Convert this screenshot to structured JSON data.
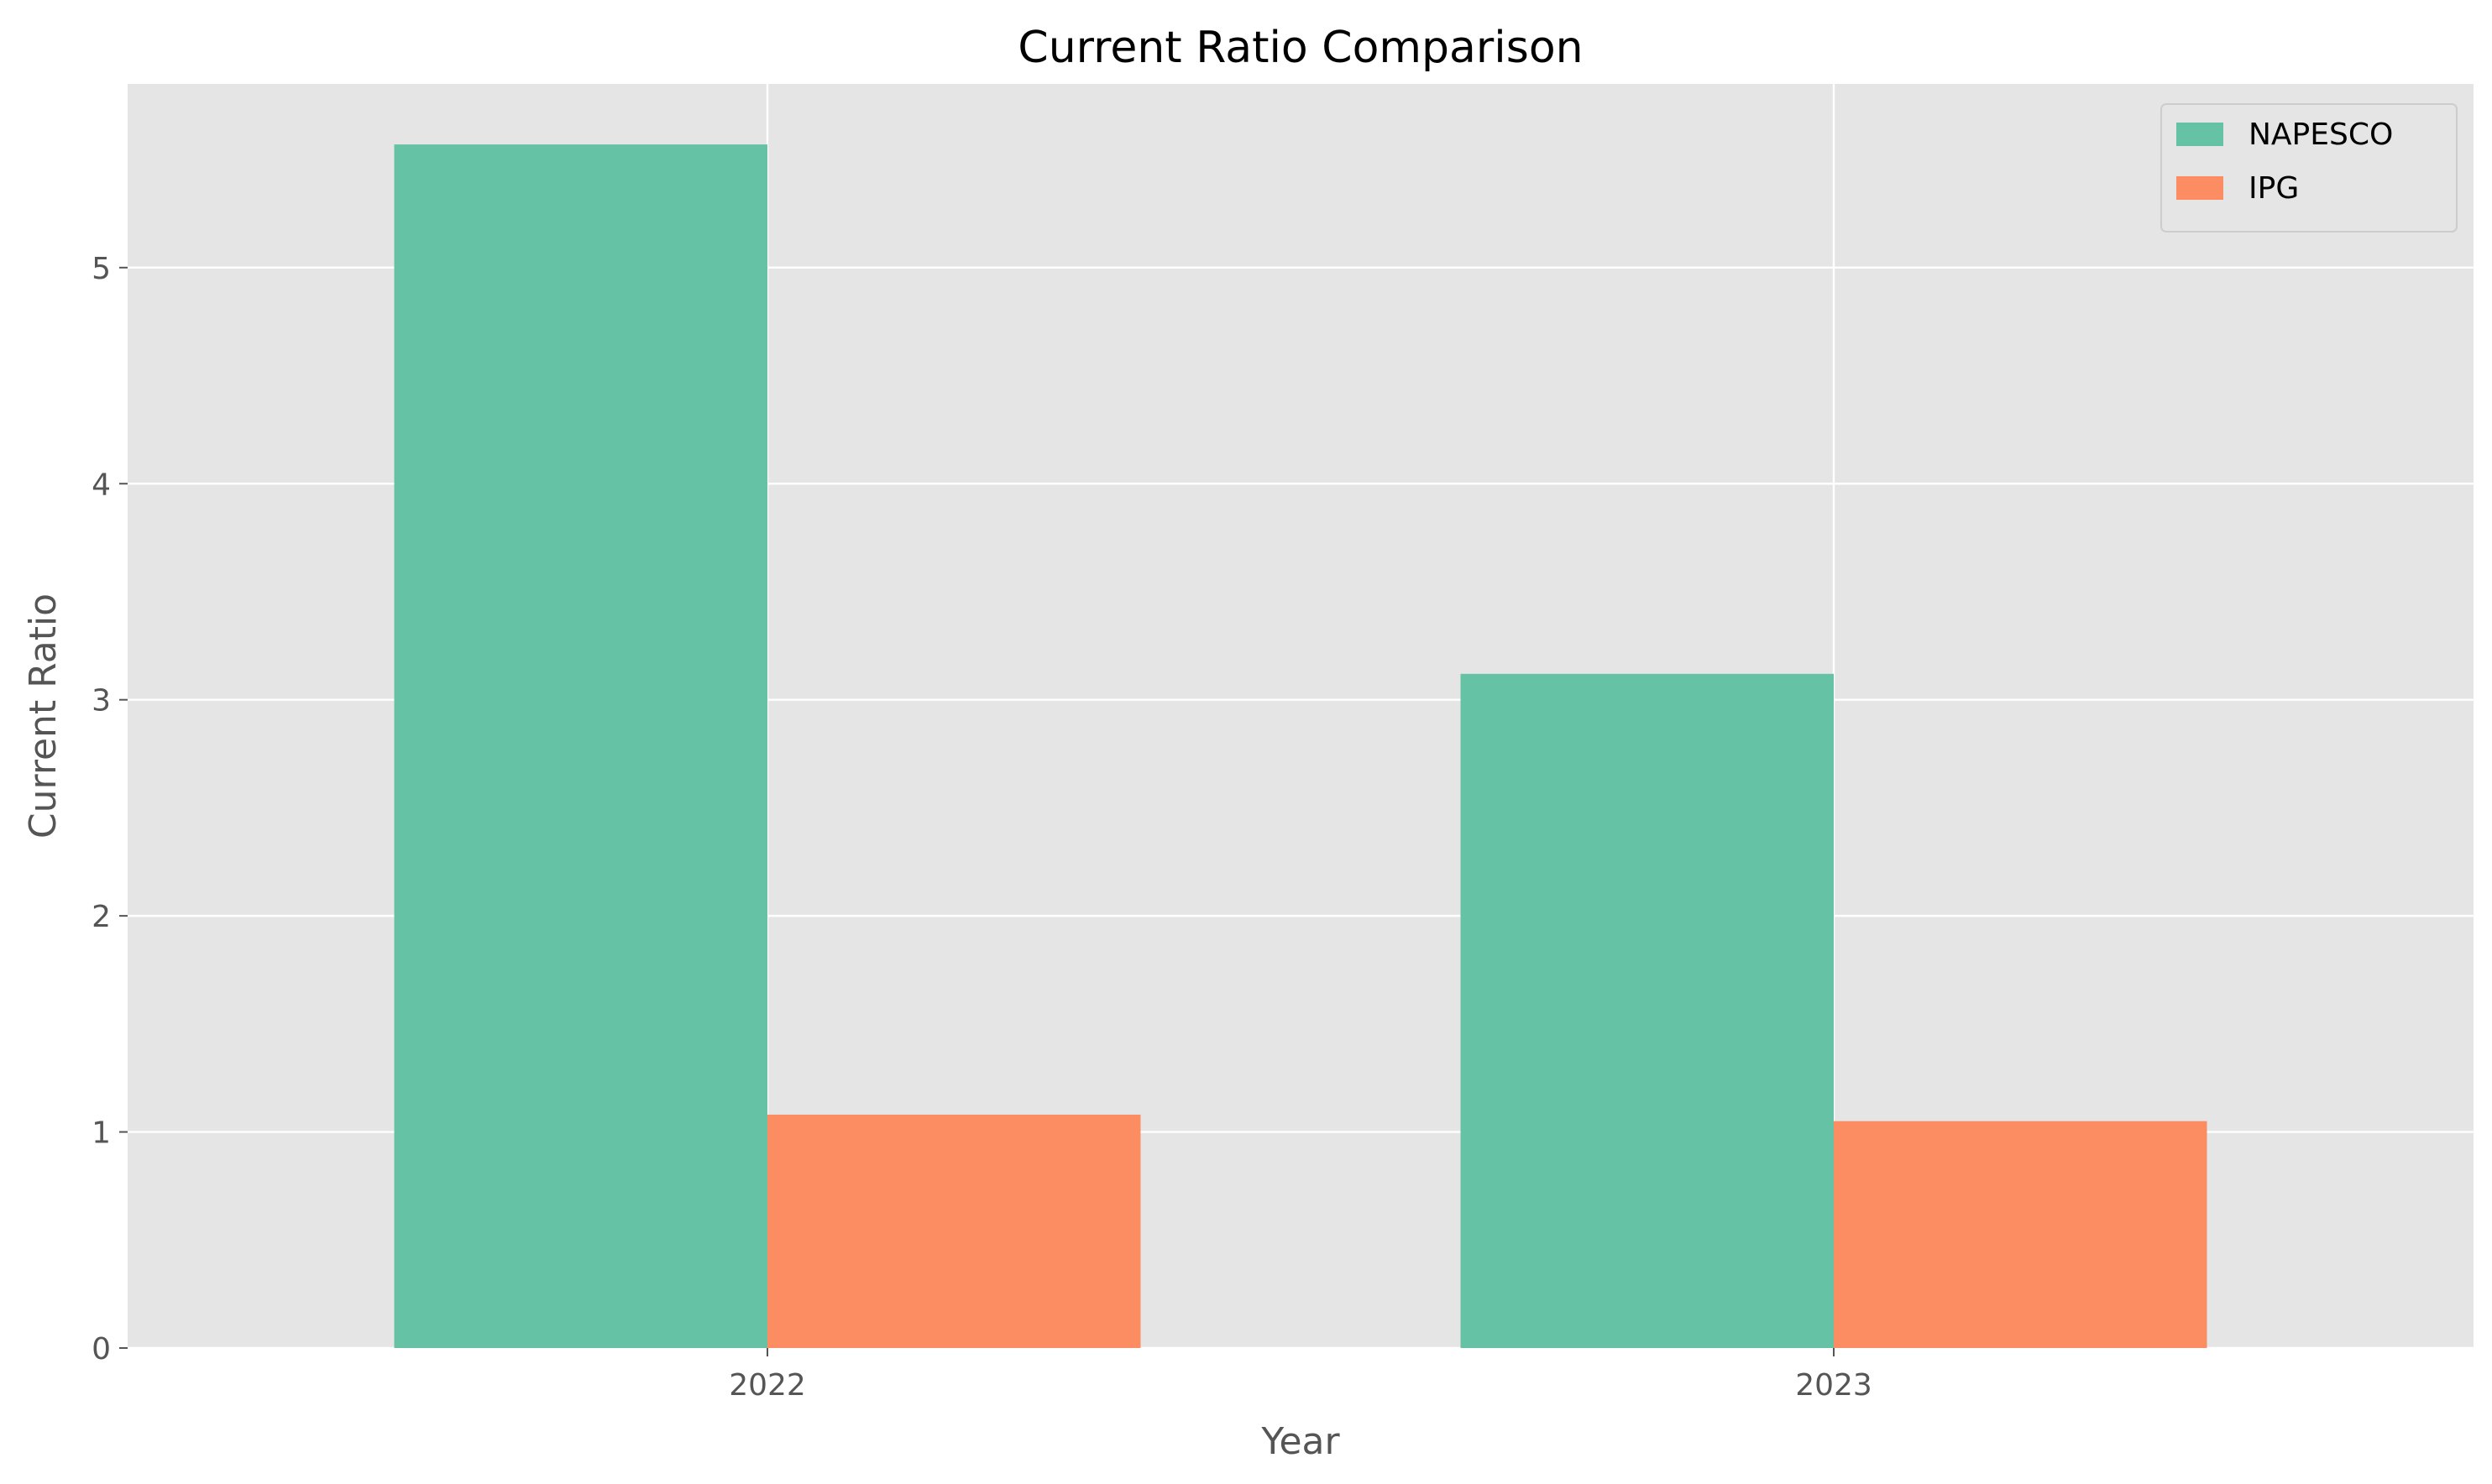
{
  "chart_data": {
    "type": "bar",
    "title": "Current Ratio Comparison",
    "xlabel": "Year",
    "ylabel": "Current Ratio",
    "categories": [
      "2022",
      "2023"
    ],
    "series": [
      {
        "name": "NAPESCO",
        "values": [
          5.57,
          3.12
        ],
        "color": "#66c2a5"
      },
      {
        "name": "IPG",
        "values": [
          1.08,
          1.05
        ],
        "color": "#fc8d62"
      }
    ],
    "ylim": [
      0,
      5.85
    ],
    "yticks": [
      0,
      1,
      2,
      3,
      4,
      5
    ],
    "grid": true,
    "legend_position": "top-right",
    "background_color": "#e5e5e5"
  }
}
